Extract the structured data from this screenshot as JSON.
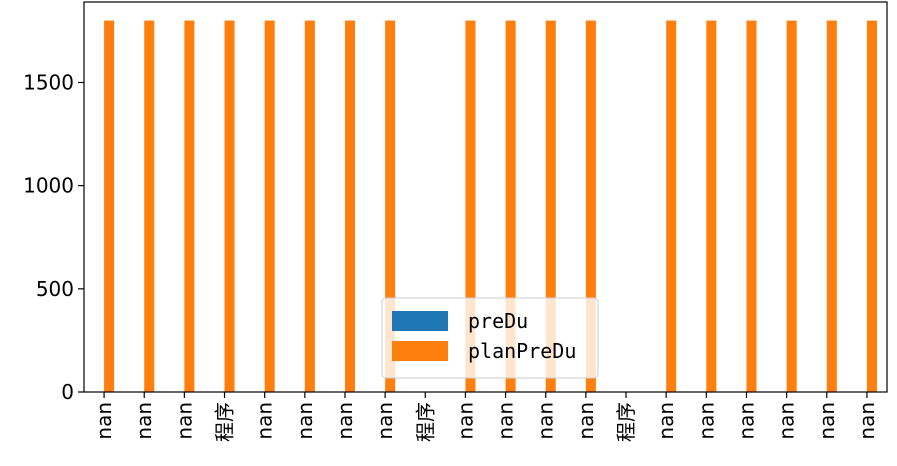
{
  "chart_data": {
    "type": "bar",
    "categories": [
      "nan",
      "nan",
      "nan",
      "程序",
      "nan",
      "nan",
      "nan",
      "nan",
      "程序",
      "nan",
      "nan",
      "nan",
      "nan",
      "程序",
      "nan",
      "nan",
      "nan",
      "nan",
      "nan",
      "nan"
    ],
    "series": [
      {
        "name": "preDu",
        "color": "#1f77b4",
        "values": [
          0,
          0,
          0,
          0,
          0,
          0,
          0,
          0,
          0,
          0,
          0,
          0,
          0,
          0,
          0,
          0,
          0,
          0,
          0,
          0
        ]
      },
      {
        "name": "planPreDu",
        "color": "#ff7f0e",
        "values": [
          1800,
          1800,
          1800,
          1800,
          1800,
          1800,
          1800,
          1800,
          0,
          1800,
          1800,
          1800,
          1800,
          0,
          1800,
          1800,
          1800,
          1800,
          1800,
          1800
        ]
      }
    ],
    "yticks": [
      0,
      500,
      1000,
      1500
    ],
    "ylim": [
      0,
      1890
    ],
    "legend": "lower-center",
    "grid": false,
    "title": "",
    "xlabel": "",
    "ylabel": ""
  }
}
